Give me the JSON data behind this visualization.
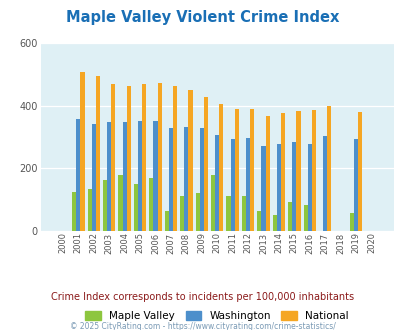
{
  "title": "Maple Valley Violent Crime Index",
  "years": [
    2000,
    2001,
    2002,
    2003,
    2004,
    2005,
    2006,
    2007,
    2008,
    2009,
    2010,
    2011,
    2012,
    2013,
    2014,
    2015,
    2016,
    2017,
    2018,
    2019,
    2020
  ],
  "maple_valley": [
    0,
    125,
    135,
    162,
    178,
    150,
    168,
    65,
    113,
    120,
    180,
    112,
    112,
    65,
    50,
    92,
    82,
    0,
    0,
    58,
    0
  ],
  "washington": [
    0,
    357,
    342,
    348,
    347,
    350,
    350,
    330,
    332,
    330,
    305,
    292,
    298,
    270,
    278,
    283,
    277,
    302,
    0,
    293,
    0
  ],
  "national": [
    0,
    506,
    494,
    468,
    463,
    469,
    471,
    464,
    451,
    429,
    405,
    389,
    390,
    368,
    375,
    384,
    387,
    399,
    0,
    379,
    0
  ],
  "maple_valley_color": "#8dc63f",
  "washington_color": "#4d8fcb",
  "national_color": "#f5a623",
  "bg_color": "#dff0f5",
  "ylim": [
    0,
    600
  ],
  "yticks": [
    0,
    200,
    400,
    600
  ],
  "subtitle": "Crime Index corresponds to incidents per 100,000 inhabitants",
  "copyright": "© 2025 CityRating.com - https://www.cityrating.com/crime-statistics/",
  "title_color": "#1a6fb5",
  "subtitle_color": "#8b1a1a",
  "copyright_color": "#7a9ab5",
  "grid_color": "#ffffff",
  "tick_color": "#555555"
}
